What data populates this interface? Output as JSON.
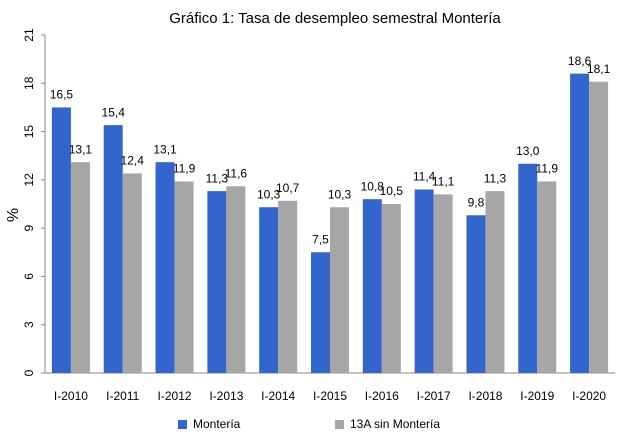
{
  "chart_data": {
    "type": "bar",
    "title": "Gráfico 1: Tasa de desempleo semestral Montería",
    "y_label": "%",
    "categories": [
      "I-2010",
      "I-2011",
      "I-2012",
      "I-2013",
      "I-2014",
      "I-2015",
      "I-2016",
      "I-2017",
      "I-2018",
      "I-2019",
      "I-2020"
    ],
    "series": [
      {
        "name": "Montería",
        "color": "#3366cc",
        "values": [
          16.5,
          15.4,
          13.1,
          11.3,
          10.3,
          7.5,
          10.8,
          11.4,
          9.8,
          13.0,
          18.6
        ],
        "value_labels": [
          "16,5",
          "15,4",
          "13,1",
          "11,3",
          "10,3",
          "7,5",
          "10,8",
          "11,4",
          "9,8",
          "13,0",
          "18,6"
        ]
      },
      {
        "name": "13A sin Montería",
        "color": "#a6a6a6",
        "values": [
          13.1,
          12.4,
          11.9,
          11.6,
          10.7,
          10.3,
          10.5,
          11.1,
          11.3,
          11.9,
          18.1
        ],
        "value_labels": [
          "13,1",
          "12,4",
          "11,9",
          "11,6",
          "10,7",
          "10,3",
          "10,5",
          "11,1",
          "11,3",
          "11,9",
          "18,1"
        ]
      }
    ],
    "ylim": [
      0,
      21
    ],
    "yticks": [
      0,
      3,
      6,
      9,
      12,
      15,
      18,
      21
    ],
    "legend": "bottom"
  }
}
